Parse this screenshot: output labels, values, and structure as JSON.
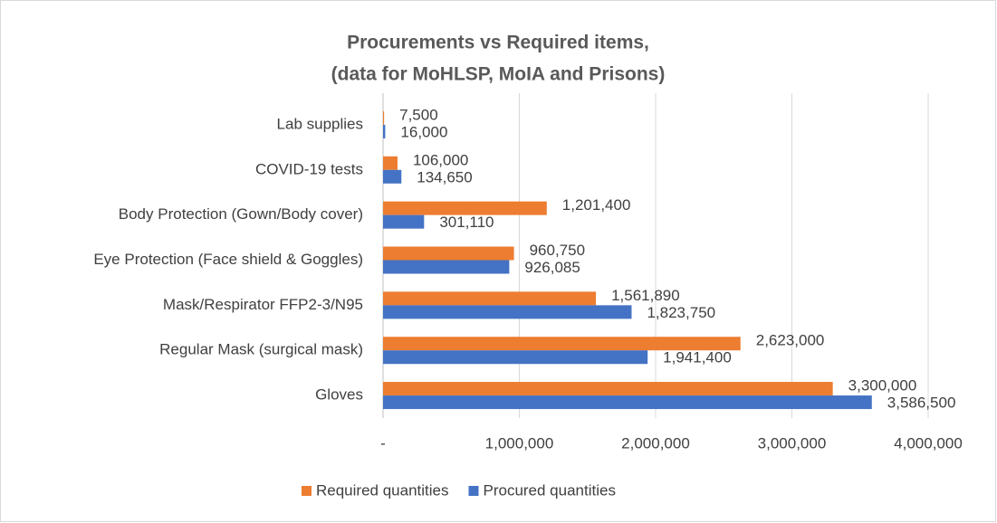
{
  "chart_data": {
    "type": "bar",
    "orientation": "horizontal",
    "title": [
      "Procurements vs Required items,",
      "(data for MoHLSP, MoIA and Prisons)"
    ],
    "categories": [
      "Lab supplies",
      "COVID-19 tests",
      "Body Protection (Gown/Body cover)",
      "Eye Protection (Face shield & Goggles)",
      "Mask/Respirator FFP2-3/N95",
      "Regular Mask (surgical mask)",
      "Gloves"
    ],
    "series": [
      {
        "name": "Required quantities",
        "color": "#ed7d31",
        "values": [
          7500,
          106000,
          1201400,
          960750,
          1561890,
          2623000,
          3300000
        ],
        "value_labels": [
          "7,500",
          "106,000",
          "1,201,400",
          "960,750",
          "1,561,890",
          "2,623,000",
          "3,300,000"
        ]
      },
      {
        "name": "Procured quantities",
        "color": "#4472c4",
        "values": [
          16000,
          134650,
          301110,
          926085,
          1823750,
          1941400,
          3586500
        ],
        "value_labels": [
          "16,000",
          "134,650",
          "301,110",
          "926,085",
          "1,823,750",
          "1,941,400",
          "3,586,500"
        ]
      }
    ],
    "xlim": [
      0,
      4000000
    ],
    "xticks": [
      {
        "value": 0,
        "label": "-"
      },
      {
        "value": 1000000,
        "label": "1,000,000"
      },
      {
        "value": 2000000,
        "label": "2,000,000"
      },
      {
        "value": 3000000,
        "label": "3,000,000"
      },
      {
        "value": 4000000,
        "label": "4,000,000"
      }
    ],
    "grid": true,
    "legend": "bottom"
  }
}
